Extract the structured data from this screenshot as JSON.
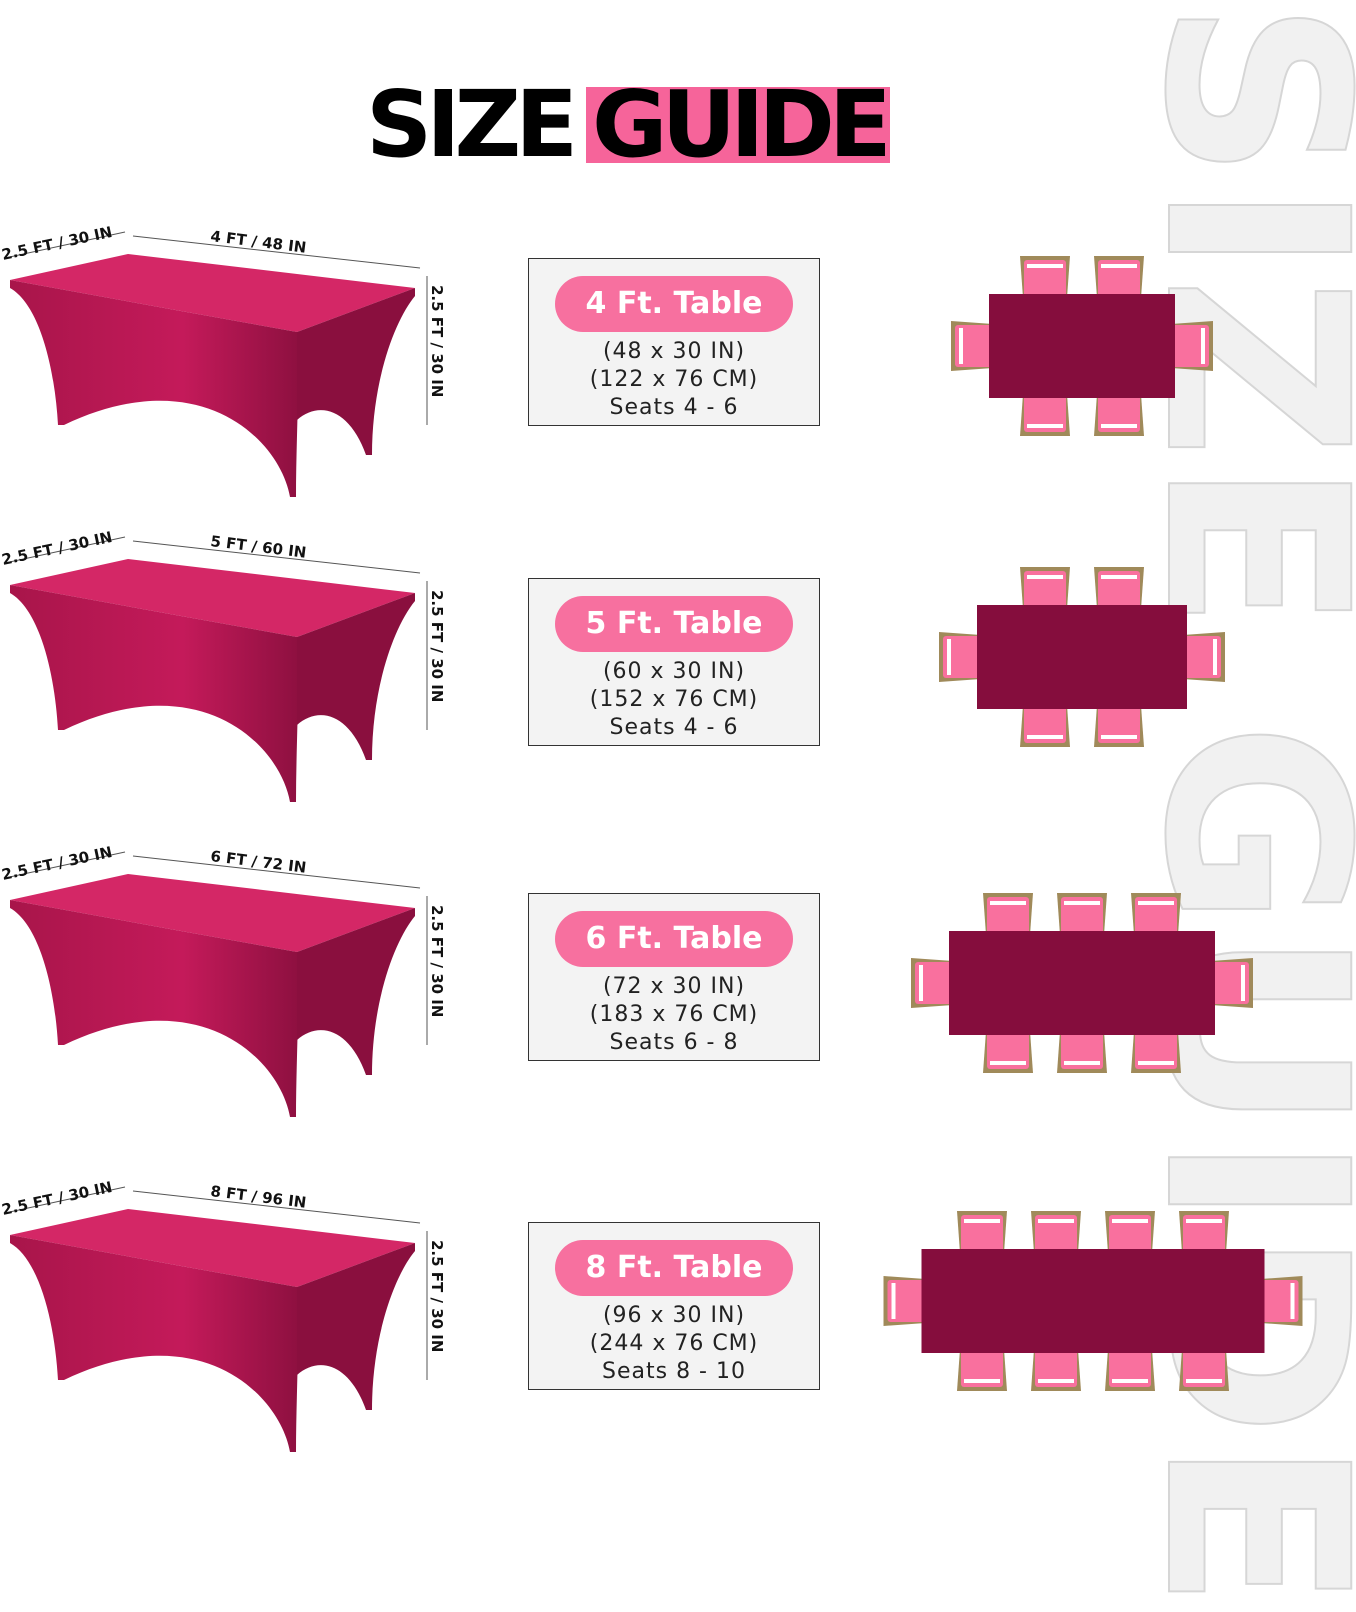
{
  "title": {
    "part1": "SIZE",
    "part2": "GUIDE"
  },
  "watermark": "SIZE GUIDE",
  "colors": {
    "accent_pink": "#f7709f",
    "title_pink": "#f6649a",
    "cover": "#c41a5a",
    "table_top_view": "#850d3d",
    "chair": "#f9709e",
    "chair_frame": "#a08a5a"
  },
  "rows": [
    {
      "width_label": "2.5 FT / 30 IN",
      "length_label": "4 FT / 48 IN",
      "height_label": "2.5 FT / 30 IN",
      "name": "4 Ft. Table",
      "inches": "(48 x 30 IN)",
      "cm": "(122 x 76 CM)",
      "seats": "Seats 4 - 6",
      "chairs_per_long_side": 2,
      "chairs_per_end": 1
    },
    {
      "width_label": "2.5 FT / 30 IN",
      "length_label": "5 FT / 60 IN",
      "height_label": "2.5 FT / 30 IN",
      "name": "5 Ft. Table",
      "inches": "(60 x 30 IN)",
      "cm": "(152 x 76 CM)",
      "seats": "Seats 4 - 6",
      "chairs_per_long_side": 2,
      "chairs_per_end": 1
    },
    {
      "width_label": "2.5 FT / 30 IN",
      "length_label": "6 FT / 72 IN",
      "height_label": "2.5 FT / 30 IN",
      "name": "6 Ft. Table",
      "inches": "(72 x 30 IN)",
      "cm": "(183 x 76 CM)",
      "seats": "Seats 6 - 8",
      "chairs_per_long_side": 3,
      "chairs_per_end": 1
    },
    {
      "width_label": "2.5 FT / 30 IN",
      "length_label": "8 FT / 96 IN",
      "height_label": "2.5 FT / 30 IN",
      "name": "8 Ft. Table",
      "inches": "(96 x 30 IN)",
      "cm": "(244 x 76 CM)",
      "seats": "Seats 8 - 10",
      "chairs_per_long_side": 4,
      "chairs_per_end": 1
    }
  ]
}
